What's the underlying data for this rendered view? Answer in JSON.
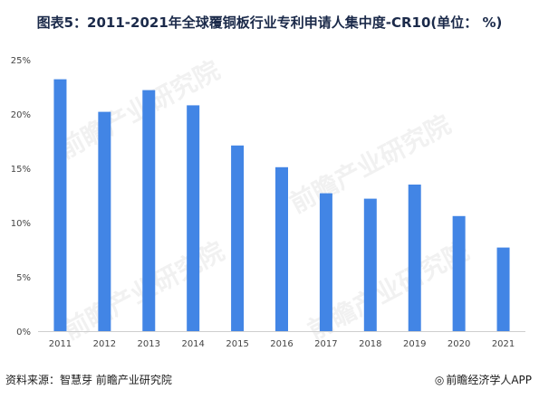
{
  "title": "图表5：2011-2021年全球覆铜板行业专利申请人集中度-CR10(单位： %)",
  "chart_data": {
    "type": "bar",
    "categories": [
      "2011",
      "2012",
      "2013",
      "2014",
      "2015",
      "2016",
      "2017",
      "2018",
      "2019",
      "2020",
      "2021"
    ],
    "values": [
      23.2,
      20.2,
      22.2,
      20.8,
      17.1,
      15.1,
      12.7,
      12.2,
      13.5,
      10.6,
      7.7
    ],
    "ylim": [
      0,
      25
    ],
    "yticks": [
      0,
      5,
      10,
      15,
      20,
      25
    ],
    "ytick_labels": [
      "0%",
      "5%",
      "10%",
      "15%",
      "20%",
      "25%"
    ],
    "bar_color": "#4285e5",
    "grid": false,
    "xlabel": "",
    "ylabel": ""
  },
  "footer": {
    "source": "资料来源：智慧芽 前瞻产业研究院",
    "brand_mark": "◎",
    "brand": "前瞻经济学人APP"
  },
  "watermark": "前瞻产业研究院"
}
